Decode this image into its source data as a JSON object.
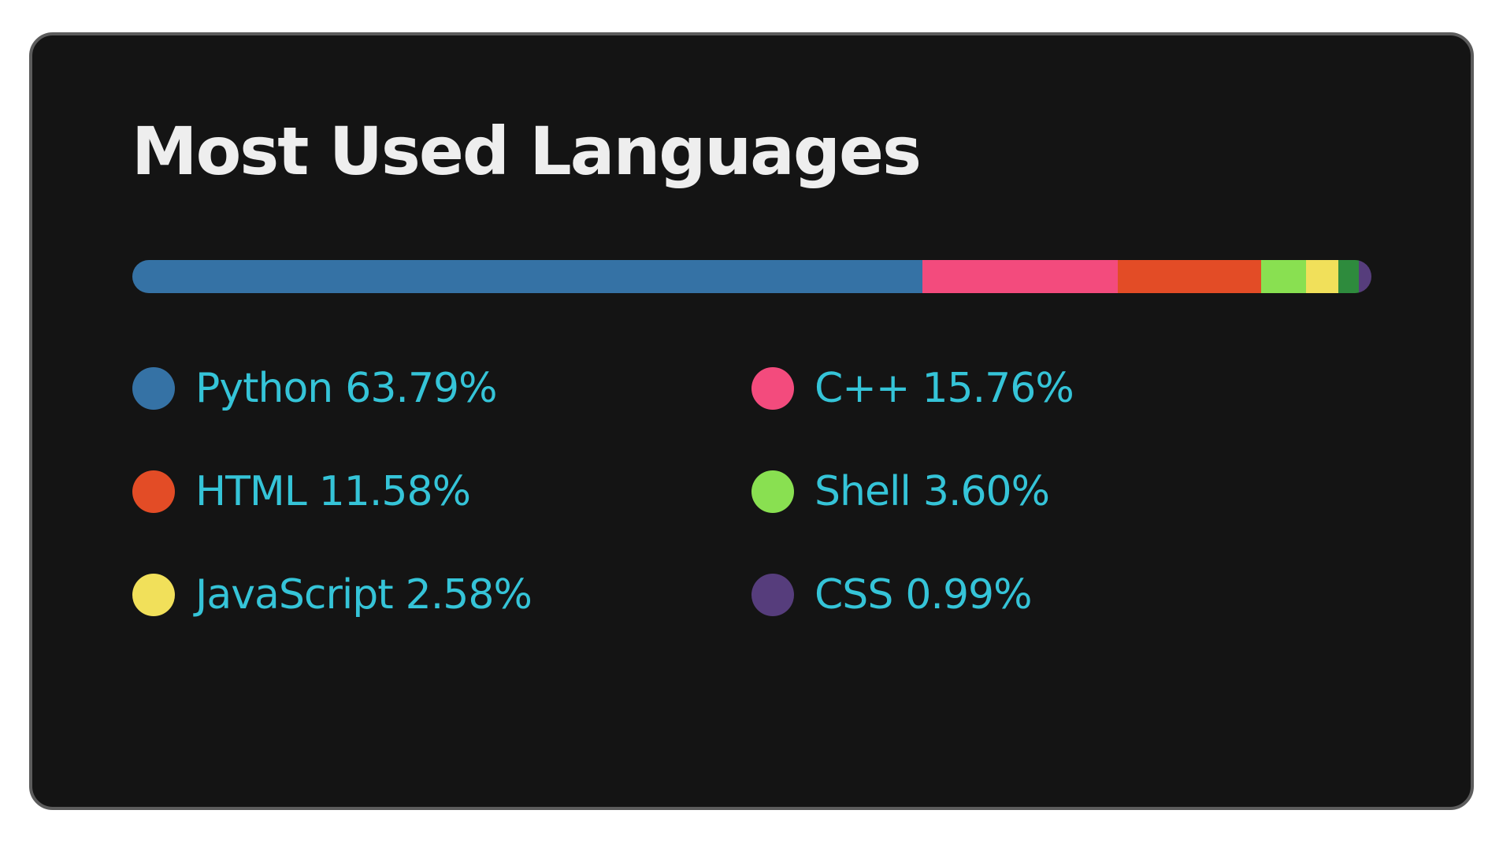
{
  "chart_data": {
    "type": "bar",
    "title": "Most Used Languages",
    "stacked": true,
    "orientation": "horizontal",
    "legend_position": "bottom",
    "unit": "%",
    "series": [
      {
        "name": "Python",
        "value": 63.79,
        "label": "63.79%",
        "color": "#3572a5"
      },
      {
        "name": "C++",
        "value": 15.76,
        "label": "15.76%",
        "color": "#f34b7d"
      },
      {
        "name": "HTML",
        "value": 11.58,
        "label": "11.58%",
        "color": "#e34c26"
      },
      {
        "name": "Shell",
        "value": 3.6,
        "label": "3.60%",
        "color": "#89e051"
      },
      {
        "name": "JavaScript",
        "value": 2.58,
        "label": "2.58%",
        "color": "#f1e05a"
      },
      {
        "name": "",
        "value": 1.7,
        "label": "",
        "color": "#2e8b3d"
      },
      {
        "name": "CSS",
        "value": 0.99,
        "label": "0.99%",
        "color": "#563d7c"
      }
    ],
    "legend_order": [
      0,
      1,
      2,
      3,
      4,
      6
    ],
    "colors": {
      "background": "#141414",
      "border": "#5c5c5c",
      "title": "#eeeeee",
      "legend_text": "#35c4d8"
    }
  }
}
